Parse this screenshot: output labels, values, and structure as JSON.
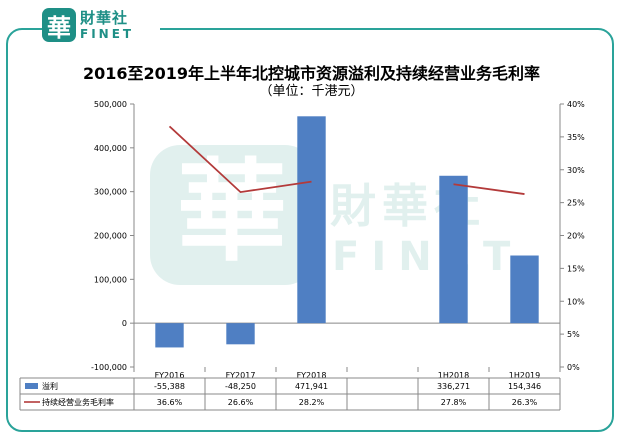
{
  "logo": {
    "mark": "華",
    "name_cn": "財華社",
    "name_en": "FINET"
  },
  "watermark": {
    "name_cn": "財華社",
    "name_en": "FINET",
    "mark": "華"
  },
  "colors": {
    "bar": "#4f7fc3",
    "line": "#b33a3a",
    "border": "#2aa39a",
    "brand": "#1e8f86"
  },
  "chart_data": {
    "type": "bar",
    "title": "2016至2019年上半年北控城市资源溢利及持续经营业务毛利率",
    "subtitle": "（单位：千港元）",
    "categories": [
      "FY2016",
      "FY2017",
      "FY2018",
      "",
      "1H2018",
      "1H2019"
    ],
    "y_left": {
      "ylim": [
        -100000,
        500000
      ],
      "ticks": [
        "-100,000",
        "0",
        "100,000",
        "200,000",
        "300,000",
        "400,000",
        "500,000"
      ],
      "tick_values": [
        -100000,
        0,
        100000,
        200000,
        300000,
        400000,
        500000
      ]
    },
    "y_right": {
      "ylim": [
        0,
        40
      ],
      "ticks": [
        "0%",
        "5%",
        "10%",
        "15%",
        "20%",
        "25%",
        "30%",
        "35%",
        "40%"
      ],
      "tick_values": [
        0,
        5,
        10,
        15,
        20,
        25,
        30,
        35,
        40
      ]
    },
    "series": [
      {
        "name": "溢利",
        "type": "bar",
        "axis": "left",
        "values": [
          -55388,
          -48250,
          471941,
          null,
          336271,
          154346
        ],
        "labels": [
          "-55,388",
          "-48,250",
          "471,941",
          "",
          "336,271",
          "154,346"
        ]
      },
      {
        "name": "持续经营业务毛利率",
        "type": "line",
        "axis": "right",
        "values": [
          36.6,
          26.6,
          28.2,
          null,
          27.8,
          26.3
        ],
        "labels": [
          "36.6%",
          "26.6%",
          "28.2%",
          "",
          "27.8%",
          "26.3%"
        ]
      }
    ],
    "grid": false,
    "legend": "data-table"
  }
}
